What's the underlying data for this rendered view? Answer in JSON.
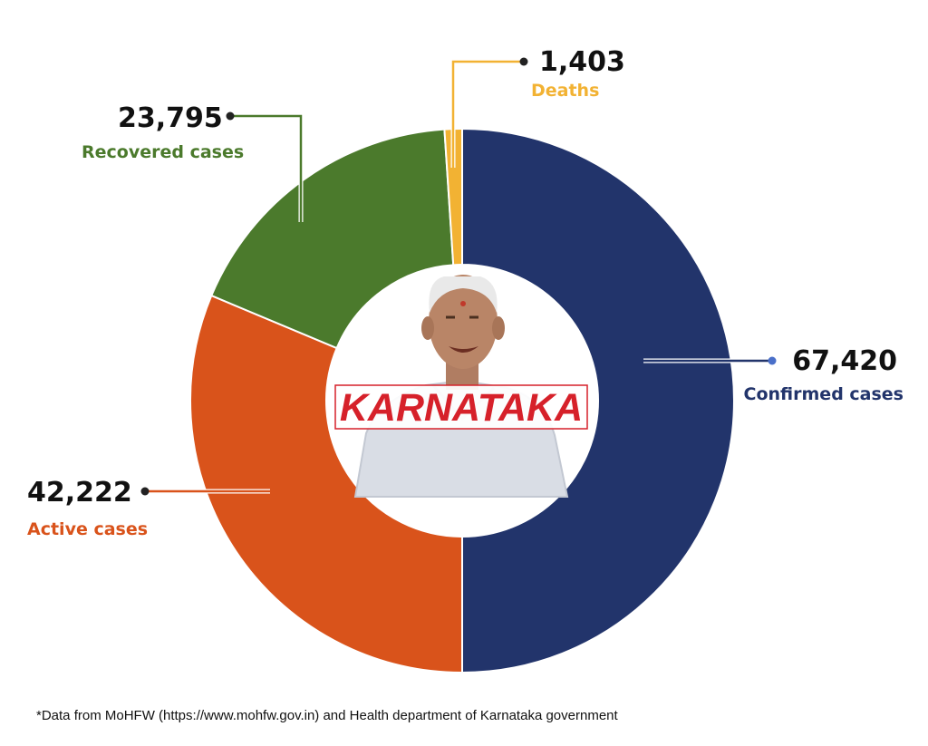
{
  "chart_data": {
    "type": "pie",
    "style": "donut",
    "total_note": "Confirmed cases = Active + Recovered + Deaths",
    "slices": [
      {
        "key": "confirmed",
        "label": "Confirmed cases",
        "value": 67420,
        "display": "67,420",
        "color": "#22346b"
      },
      {
        "key": "active",
        "label": "Active cases",
        "value": 42222,
        "display": "42,222",
        "color": "#d9531b"
      },
      {
        "key": "recovered",
        "label": "Recovered cases",
        "value": 23795,
        "display": "23,795",
        "color": "#4b7a2c"
      },
      {
        "key": "deaths",
        "label": "Deaths",
        "value": 1403,
        "display": "1,403",
        "color": "#f2b233"
      }
    ],
    "center_text": "KARNATAKA",
    "center_text_color": "#d6212a"
  },
  "footnote": "*Data from MoHFW (https://www.mohfw.gov.in) and Health department of Karnataka government"
}
